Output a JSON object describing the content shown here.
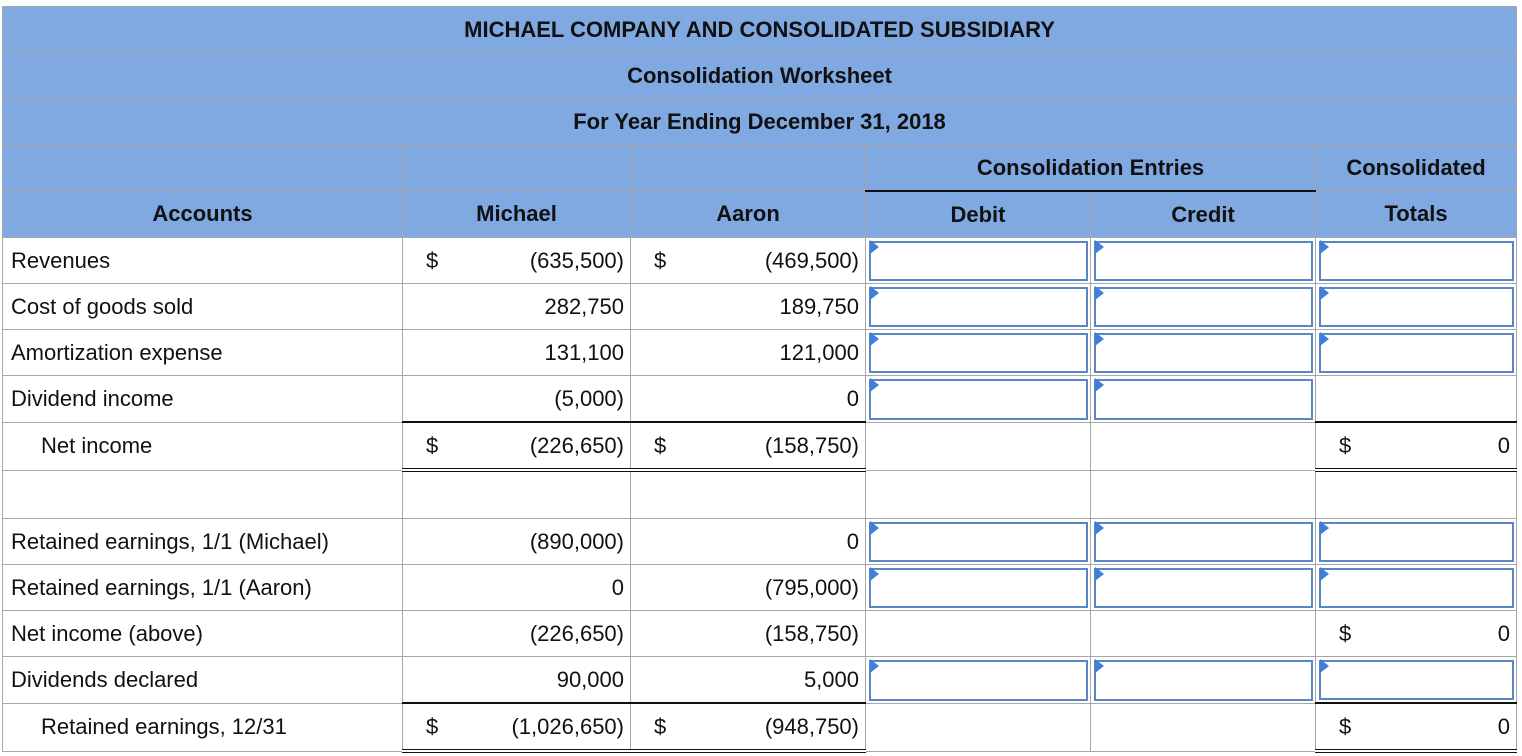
{
  "title": {
    "company": "MICHAEL COMPANY AND CONSOLIDATED SUBSIDIARY",
    "worksheet": "Consolidation Worksheet",
    "period": "For Year Ending December 31, 2018"
  },
  "columns": {
    "consolidation_entries": "Consolidation Entries",
    "consolidated": "Consolidated",
    "accounts": "Accounts",
    "michael": "Michael",
    "aaron": "Aaron",
    "debit": "Debit",
    "credit": "Credit",
    "totals": "Totals"
  },
  "currency": "$",
  "rows": {
    "revenues": {
      "label": "Revenues",
      "michael": "(635,500)",
      "aaron": "(469,500)"
    },
    "cogs": {
      "label": "Cost of goods sold",
      "michael": "282,750",
      "aaron": "189,750"
    },
    "amort": {
      "label": "Amortization expense",
      "michael": "131,100",
      "aaron": "121,000"
    },
    "divinc": {
      "label": "Dividend income",
      "michael": "(5,000)",
      "aaron": "0"
    },
    "netinc": {
      "label": "Net income",
      "michael": "(226,650)",
      "aaron": "(158,750)",
      "total": "0"
    },
    "re_michael": {
      "label": "Retained earnings, 1/1 (Michael)",
      "michael": "(890,000)",
      "aaron": "0"
    },
    "re_aaron": {
      "label": "Retained earnings, 1/1 (Aaron)",
      "michael": "0",
      "aaron": "(795,000)"
    },
    "ni_above": {
      "label": "Net income (above)",
      "michael": "(226,650)",
      "aaron": "(158,750)",
      "total": "0"
    },
    "divdecl": {
      "label": "Dividends declared",
      "michael": "90,000",
      "aaron": "5,000"
    },
    "re_end": {
      "label": "Retained earnings, 12/31",
      "michael": "(1,026,650)",
      "aaron": "(948,750)",
      "total": "0"
    }
  },
  "colors": {
    "header": "#80a9e2",
    "input_border": "#5b86c5",
    "marker": "#3d7fd9"
  }
}
